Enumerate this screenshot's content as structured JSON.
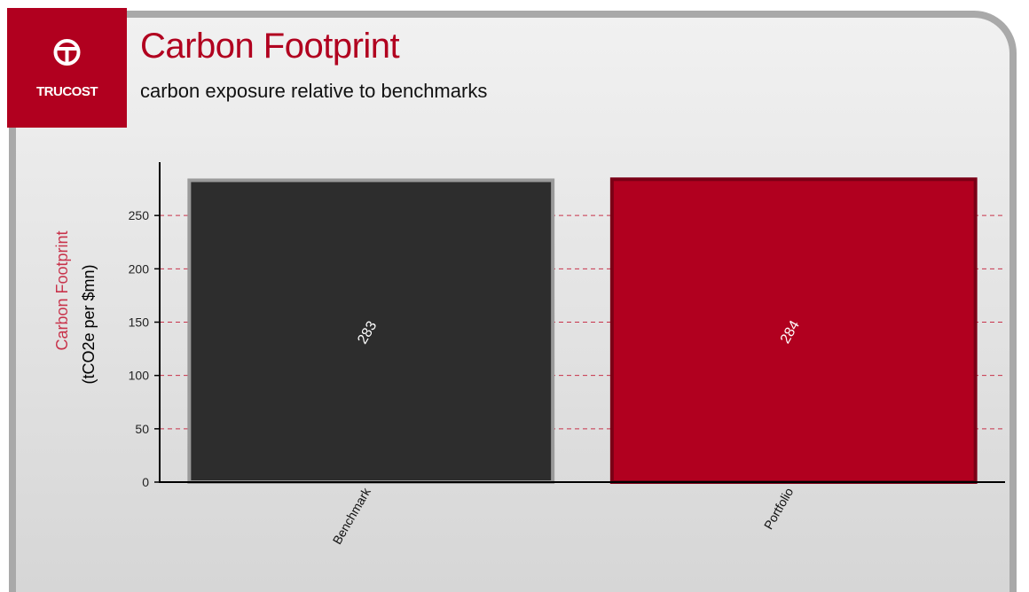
{
  "brand": {
    "name": "TRUCOST",
    "color": "#b1001f"
  },
  "header": {
    "title": "Carbon Footprint",
    "subtitle": "carbon exposure relative to benchmarks"
  },
  "chart_data": {
    "type": "bar",
    "categories": [
      "Benchmark",
      "Portfolio"
    ],
    "values": [
      283,
      284
    ],
    "value_labels": [
      "283",
      "284"
    ],
    "bar_colors": [
      "#2d2d2d",
      "#b1001f"
    ],
    "bar_edge_colors": [
      "#9a9a9a",
      "#7a0016"
    ],
    "ylabel_line1": "Carbon Footprint",
    "ylabel_line2": "(tCO2e per $mn)",
    "ylim": [
      0,
      300
    ],
    "yticks": [
      0,
      50,
      100,
      150,
      200,
      250
    ],
    "grid": "dashed horizontal",
    "grid_color": "#c8324a"
  }
}
